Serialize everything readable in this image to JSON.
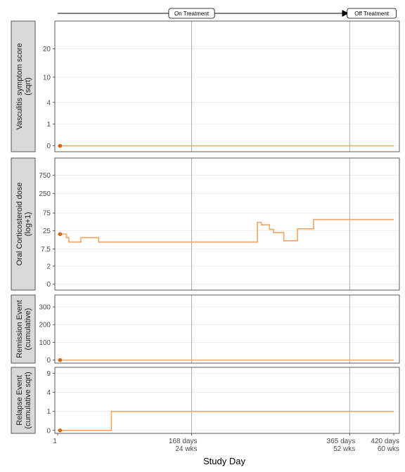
{
  "chart_data": {
    "type": "line",
    "xlabel": "Study Day",
    "xlim": [
      1,
      420
    ],
    "x_ticks": [
      {
        "value": 1,
        "lines": [
          "1"
        ]
      },
      {
        "value": 168,
        "lines": [
          "168 days",
          "24 wks"
        ]
      },
      {
        "value": 365,
        "lines": [
          "365 days",
          "52 wks"
        ]
      },
      {
        "value": 420,
        "lines": [
          "420 days",
          "60 wks"
        ]
      }
    ],
    "reference_lines_x": [
      168,
      365
    ],
    "timeline": {
      "segments": [
        {
          "label": "On Treatment",
          "start": 1,
          "end": 365
        },
        {
          "label": "Off Treatment",
          "start": 365,
          "end": 420
        }
      ]
    },
    "colors": {
      "line": "#F4A460",
      "point": "#D2691E",
      "strip": "#D9D9D9",
      "grid": "#EBEBEB",
      "vline": "#999999"
    },
    "panels": [
      {
        "strip": [
          "Vasculitis symptom score",
          "(sqrt)"
        ],
        "scale": "sqrt",
        "ylim": [
          0,
          30
        ],
        "yticks": [
          {
            "v": 0,
            "label": "0"
          },
          {
            "v": 1,
            "label": "1"
          },
          {
            "v": 4,
            "label": "4"
          },
          {
            "v": 10,
            "label": "10"
          },
          {
            "v": 20,
            "label": "20"
          }
        ],
        "steps": [
          [
            1,
            0
          ],
          [
            420,
            0
          ]
        ],
        "point": [
          4,
          0
        ]
      },
      {
        "strip": [
          "Oral Corticosteroid dose",
          "(log+1)"
        ],
        "scale": "log1p",
        "ylim": [
          0,
          1500
        ],
        "yticks": [
          {
            "v": 0,
            "label": "0"
          },
          {
            "v": 2,
            "label": "2"
          },
          {
            "v": 7.5,
            "label": "7.5"
          },
          {
            "v": 25,
            "label": "25"
          },
          {
            "v": 75,
            "label": "75"
          },
          {
            "v": 250,
            "label": "250"
          },
          {
            "v": 750,
            "label": "750"
          }
        ],
        "steps": [
          [
            1,
            20
          ],
          [
            12,
            16
          ],
          [
            15,
            12
          ],
          [
            30,
            16
          ],
          [
            52,
            12
          ],
          [
            250,
            42
          ],
          [
            255,
            36
          ],
          [
            265,
            27
          ],
          [
            270,
            22
          ],
          [
            283,
            13
          ],
          [
            300,
            28
          ],
          [
            320,
            50
          ],
          [
            420,
            50
          ]
        ],
        "point": [
          4,
          20
        ]
      },
      {
        "strip": [
          "Remission Event",
          "(cumulative)"
        ],
        "scale": "linear",
        "ylim": [
          0,
          350
        ],
        "yticks": [
          {
            "v": 0,
            "label": "0"
          },
          {
            "v": 100,
            "label": "100"
          },
          {
            "v": 200,
            "label": "200"
          },
          {
            "v": 300,
            "label": "300"
          }
        ],
        "steps": [
          [
            1,
            0
          ],
          [
            420,
            0
          ]
        ],
        "point": [
          4,
          0
        ]
      },
      {
        "strip": [
          "Relapse Event",
          "(cumulative sqrt)"
        ],
        "scale": "sqrt",
        "ylim": [
          0,
          10
        ],
        "yticks": [
          {
            "v": 0,
            "label": "0"
          },
          {
            "v": 1,
            "label": "1"
          },
          {
            "v": 4,
            "label": "4"
          },
          {
            "v": 9,
            "label": "9"
          }
        ],
        "steps": [
          [
            1,
            0
          ],
          [
            68,
            1
          ],
          [
            420,
            1
          ]
        ],
        "point": [
          4,
          0
        ]
      }
    ]
  }
}
